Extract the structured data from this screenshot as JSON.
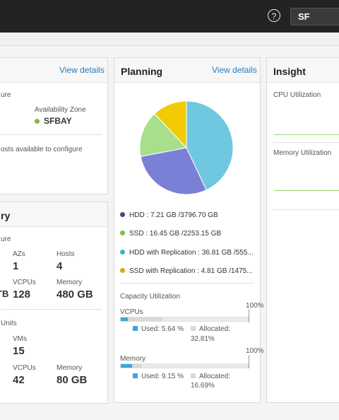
{
  "header": {
    "help_icon": "question-circle-icon",
    "help_glyph": "?",
    "region": "SF"
  },
  "overview_card": {
    "view_details": "View details",
    "section_label": "ure",
    "az_label": "Availability Zone",
    "az_value": "SFBAY",
    "az_status_color": "#7dbb3f",
    "hosts_note": "osts available to configure"
  },
  "inventory_card": {
    "title": "ry",
    "infra_label": "ure",
    "azs_label": "AZs",
    "azs_value": "1",
    "hosts_label": "Hosts",
    "hosts_value": "4",
    "vcpus_label": "VCPUs",
    "vcpus_value": "128",
    "tb_fragment": "TB",
    "memory_label": "Memory",
    "memory_value": "480 GB",
    "units_label": "Units",
    "vms_label": "VMs",
    "vms_value": "15",
    "units_vcpus_label": "VCPUs",
    "units_vcpus_value": "42",
    "units_memory_label": "Memory",
    "units_memory_value": "80 GB"
  },
  "planning_card": {
    "title": "Planning",
    "view_details": "View details",
    "legend": [
      {
        "label": "HDD : 7.21 GB /3796.70 GB",
        "color": "#3f4b8c"
      },
      {
        "label": "SSD : 16.45 GB /2253.15 GB",
        "color": "#7dc242"
      },
      {
        "label": "HDD with Replication : 36.81 GB /555...",
        "color": "#3bb3d8"
      },
      {
        "label": "SSD with Replication : 4.81 GB /1475...",
        "color": "#e0a21b"
      }
    ],
    "capacity_title": "Capacity Utilization",
    "vcpus": {
      "label": "VCPUs",
      "max": "100%",
      "used_label": "Used: 5.64 %",
      "allocated_label": "Allocated:",
      "allocated_value": "32.81%",
      "used_fraction": 0.0564,
      "allocated_fraction": 0.3281
    },
    "memory": {
      "label": "Memory",
      "max": "100%",
      "used_label": "Used: 9.15 %",
      "allocated_label": "Allocated:",
      "allocated_value": "16.69%",
      "used_fraction": 0.0915,
      "allocated_fraction": 0.1669
    },
    "used_color": "#3aa6dd",
    "allocated_color": "#d9d9d9"
  },
  "insight_card": {
    "title": "Insight",
    "cpu_label": "CPU Utilization",
    "memory_label": "Memory Utilization",
    "line_color": "#9fd66a"
  },
  "chart_data": {
    "type": "pie",
    "slices": [
      {
        "color": "#6fc8e0",
        "value": 43
      },
      {
        "color": "#7a80d6",
        "value": 29
      },
      {
        "color": "#a8df8a",
        "value": 16
      },
      {
        "color": "#f2cb05",
        "value": 12
      }
    ]
  }
}
